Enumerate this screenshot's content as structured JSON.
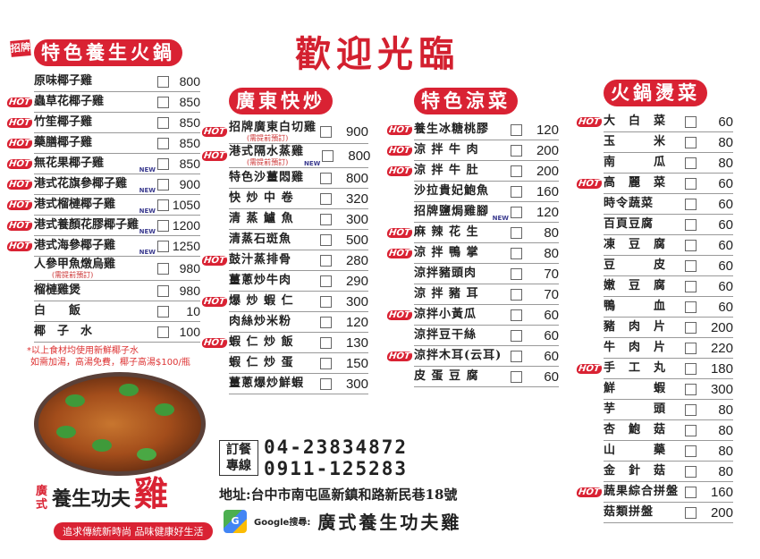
{
  "title": "歡迎光臨",
  "colors": {
    "accent": "#d92233"
  },
  "signature_label": "招牌",
  "columns": [
    {
      "heading": "特色養生火鍋",
      "items": [
        {
          "name": "原味椰子雞",
          "price": "800"
        },
        {
          "name": "蟲草花椰子雞",
          "price": "850",
          "hot": "HOT"
        },
        {
          "name": "竹笙椰子雞",
          "price": "850",
          "hot": "HOT"
        },
        {
          "name": "藥膳椰子雞",
          "price": "850",
          "hot": "HOT"
        },
        {
          "name": "無花果椰子雞",
          "price": "850",
          "hot": "HOT",
          "new": "NEW"
        },
        {
          "name": "港式花旗參椰子雞",
          "price": "900",
          "hot": "HOT",
          "new": "NEW"
        },
        {
          "name": "港式榴槤椰子雞",
          "price": "1050",
          "hot": "HOT",
          "new": "NEW"
        },
        {
          "name": "港式養顏花膠椰子雞",
          "price": "1200",
          "hot": "HOT",
          "new": "NEW"
        },
        {
          "name": "港式海參椰子雞",
          "price": "1250",
          "hot": "HOT",
          "new": "NEW"
        },
        {
          "name": "人參甲魚燉烏雞",
          "price": "980",
          "note": "(需提前預訂)"
        },
        {
          "name": "榴槤雞煲",
          "price": "980"
        },
        {
          "name": "白　　飯",
          "price": "10"
        },
        {
          "name": "椰　子　水",
          "price": "100"
        }
      ]
    },
    {
      "heading": "廣東快炒",
      "items": [
        {
          "name": "招牌廣東白切雞",
          "price": "900",
          "hot": "HOT",
          "note": "(需提前預訂)"
        },
        {
          "name": "港式隔水蒸雞",
          "price": "800",
          "hot": "HOT",
          "new": "NEW",
          "note": "(需提前預訂)"
        },
        {
          "name": "特色沙薑悶雞",
          "price": "800"
        },
        {
          "name": "快 炒 中 卷",
          "price": "320"
        },
        {
          "name": "清 蒸 鱸 魚",
          "price": "300"
        },
        {
          "name": "清蒸石斑魚",
          "price": "500"
        },
        {
          "name": "鼓汁蒸排骨",
          "price": "280",
          "hot": "HOT"
        },
        {
          "name": "薑蔥炒牛肉",
          "price": "290"
        },
        {
          "name": "爆 炒 蝦 仁",
          "price": "300",
          "hot": "HOT"
        },
        {
          "name": "肉絲炒米粉",
          "price": "120"
        },
        {
          "name": "蝦 仁 炒 飯",
          "price": "130",
          "hot": "HOT"
        },
        {
          "name": "蝦 仁 炒 蛋",
          "price": "150"
        },
        {
          "name": "薑蔥爆炒鮮蝦",
          "price": "300"
        }
      ]
    },
    {
      "heading": "特色涼菜",
      "items": [
        {
          "name": "養生冰糖桃膠",
          "price": "120",
          "hot": "HOT"
        },
        {
          "name": "涼 拌 牛 肉",
          "price": "200",
          "hot": "HOT"
        },
        {
          "name": "涼 拌 牛 肚",
          "price": "200",
          "hot": "HOT"
        },
        {
          "name": "沙拉貴妃鮑魚",
          "price": "160"
        },
        {
          "name": "招牌鹽焗雞腳",
          "price": "120",
          "new": "NEW"
        },
        {
          "name": "麻 辣 花 生",
          "price": "80",
          "hot": "HOT"
        },
        {
          "name": "涼 拌 鴨 掌",
          "price": "80",
          "hot": "HOT"
        },
        {
          "name": "涼拌豬頭肉",
          "price": "70"
        },
        {
          "name": "涼 拌 豬 耳",
          "price": "70"
        },
        {
          "name": "涼拌小黃瓜",
          "price": "60",
          "hot": "HOT"
        },
        {
          "name": "涼拌豆干絲",
          "price": "60"
        },
        {
          "name": "涼拌木耳(云耳)",
          "price": "60",
          "hot": "HOT"
        },
        {
          "name": "皮 蛋 豆 腐",
          "price": "60"
        }
      ]
    },
    {
      "heading": "火鍋燙菜",
      "items": [
        {
          "name": "大　白　菜",
          "price": "60",
          "hot": "HOT"
        },
        {
          "name": "玉　　　米",
          "price": "80"
        },
        {
          "name": "南　　　瓜",
          "price": "80"
        },
        {
          "name": "高　麗　菜",
          "price": "60",
          "hot": "HOT"
        },
        {
          "name": "時令蔬菜",
          "price": "60"
        },
        {
          "name": "百頁豆腐",
          "price": "60"
        },
        {
          "name": "凍　豆　腐",
          "price": "60"
        },
        {
          "name": "豆　　　皮",
          "price": "60"
        },
        {
          "name": "嫩　豆　腐",
          "price": "60"
        },
        {
          "name": "鴨　　　血",
          "price": "60"
        },
        {
          "name": "豬　肉　片",
          "price": "200"
        },
        {
          "name": "牛　肉　片",
          "price": "220"
        },
        {
          "name": "手　工　丸",
          "price": "180",
          "hot": "HOT"
        },
        {
          "name": "鮮　　　蝦",
          "price": "300"
        },
        {
          "name": "芋　　　頭",
          "price": "80"
        },
        {
          "name": "杏　鮑　菇",
          "price": "80"
        },
        {
          "name": "山　　　藥",
          "price": "80"
        },
        {
          "name": "金　針　菇",
          "price": "80"
        },
        {
          "name": "蔬果綜合拼盤",
          "price": "160",
          "hot": "HOT"
        },
        {
          "name": "菇類拼盤",
          "price": "200"
        }
      ]
    }
  ],
  "footnote": [
    "*以上食材均使用新鮮椰子水",
    "如需加湯，高湯免費，椰子高湯$100/瓶"
  ],
  "brand": {
    "prefix": "廣式",
    "main": "養生功夫",
    "char": "雞",
    "slogan": "追求傳統新時尚 品味健康好生活"
  },
  "order": {
    "label": "訂餐專線",
    "phone1": "04-23834872",
    "phone2": "0911-125283"
  },
  "address": "地址:台中市南屯區新鎮和路新民巷18號",
  "google": {
    "label": "Google搜尋:",
    "name": "廣式養生功夫雞"
  }
}
